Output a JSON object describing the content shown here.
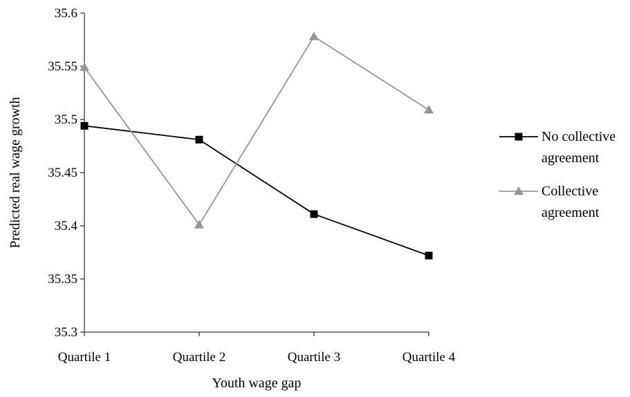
{
  "chart_data": {
    "type": "line",
    "xlabel": "Youth wage gap",
    "ylabel": "Predicted real wage growth",
    "categories": [
      "Quartile 1",
      "Quartile 2",
      "Quartile 3",
      "Quartile 4"
    ],
    "ylim": [
      35.3,
      35.6
    ],
    "yticks": [
      "35.3",
      "35.35",
      "35.4",
      "35.45",
      "35.5",
      "35.55",
      "35.6"
    ],
    "grid": false,
    "legend_position": "right",
    "series": [
      {
        "name_lines": [
          "No collective",
          "agreement"
        ],
        "color": "#000000",
        "marker": "square",
        "values": [
          35.494,
          35.481,
          35.411,
          35.372
        ]
      },
      {
        "name_lines": [
          "Collective",
          "agreement"
        ],
        "color": "#969696",
        "marker": "triangle",
        "values": [
          35.549,
          35.401,
          35.578,
          35.509
        ]
      }
    ]
  }
}
